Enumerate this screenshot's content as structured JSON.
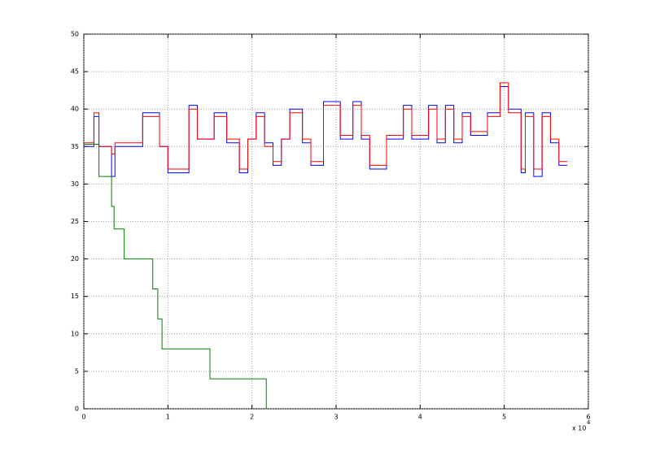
{
  "chart_data": {
    "type": "line",
    "xlim": [
      0,
      60000
    ],
    "ylim": [
      0,
      50
    ],
    "xticks": [
      0,
      {
        "value": 10000,
        "label": "1"
      },
      {
        "value": 20000,
        "label": "2"
      },
      {
        "value": 30000,
        "label": "3"
      },
      {
        "value": 40000,
        "label": "4"
      },
      {
        "value": 50000,
        "label": "5"
      },
      {
        "value": 60000,
        "label": "6"
      }
    ],
    "yticks": [
      0,
      5,
      10,
      15,
      20,
      25,
      30,
      35,
      40,
      45,
      50
    ],
    "x_scale_label": "x 10",
    "x_scale_exponent": "4",
    "grid": true,
    "series": [
      {
        "color": "#0000ff",
        "x": [
          0,
          1200,
          1200,
          1800,
          1800,
          3300,
          3300,
          3700,
          3700,
          7000,
          7000,
          9000,
          9000,
          10000,
          10000,
          12500,
          12500,
          13500,
          13500,
          15500,
          15500,
          17000,
          17000,
          18500,
          18500,
          19500,
          19500,
          20500,
          20500,
          21500,
          21500,
          22500,
          22500,
          23500,
          23500,
          24500,
          24500,
          26000,
          26000,
          27000,
          27000,
          28500,
          28500,
          30500,
          30500,
          32000,
          32000,
          33000,
          33000,
          34000,
          34000,
          36000,
          36000,
          38000,
          38000,
          39000,
          39000,
          41000,
          41000,
          42000,
          42000,
          43000,
          43000,
          44000,
          44000,
          45000,
          45000,
          46000,
          46000,
          48000,
          48000,
          49500,
          49500,
          50500,
          50500,
          52000,
          52000,
          52500,
          52500,
          53500,
          53500,
          54500,
          54500,
          55500,
          55500,
          56500,
          56500,
          57500
        ],
        "values": [
          35,
          35,
          39,
          39,
          35,
          35,
          31,
          31,
          35,
          35,
          39.5,
          39.5,
          35,
          35,
          31.5,
          31.5,
          40.5,
          40.5,
          36,
          36,
          39.5,
          39.5,
          35.5,
          35.5,
          31.5,
          31.5,
          36,
          36,
          39.5,
          39.5,
          35.5,
          35.5,
          32.5,
          32.5,
          36,
          36,
          40,
          40,
          35.5,
          35.5,
          32.5,
          32.5,
          41,
          41,
          36,
          36,
          41,
          41,
          36,
          36,
          32,
          32,
          36,
          36,
          40.5,
          40.5,
          36,
          36,
          40.5,
          40.5,
          35.5,
          35.5,
          40.5,
          40.5,
          35.5,
          35.5,
          39.5,
          39.5,
          36.5,
          36.5,
          39.5,
          39.5,
          43,
          43,
          40,
          40,
          31.5,
          31.5,
          39.5,
          39.5,
          31,
          31,
          39.5,
          39.5,
          35.5,
          35.5,
          32.5,
          32.5
        ]
      },
      {
        "color": "#ff0000",
        "x": [
          0,
          1200,
          1200,
          1800,
          1800,
          3300,
          3300,
          3700,
          3700,
          7000,
          7000,
          9000,
          9000,
          10000,
          10000,
          12500,
          12500,
          13500,
          13500,
          15500,
          15500,
          17000,
          17000,
          18500,
          18500,
          19500,
          19500,
          20500,
          20500,
          21500,
          21500,
          22500,
          22500,
          23500,
          23500,
          24500,
          24500,
          26000,
          26000,
          27000,
          27000,
          28500,
          28500,
          30500,
          30500,
          32000,
          32000,
          33000,
          33000,
          34000,
          34000,
          36000,
          36000,
          38000,
          38000,
          39000,
          39000,
          41000,
          41000,
          42000,
          42000,
          43000,
          43000,
          44000,
          44000,
          45000,
          45000,
          46000,
          46000,
          48000,
          48000,
          49500,
          49500,
          50500,
          50500,
          52000,
          52000,
          52500,
          52500,
          53500,
          53500,
          54500,
          54500,
          55500,
          55500,
          56500,
          56500,
          57500
        ],
        "values": [
          35.5,
          35.5,
          39.5,
          39.5,
          35,
          35,
          34,
          34,
          35.5,
          35.5,
          39,
          39,
          35,
          35,
          32,
          32,
          40,
          40,
          36,
          36,
          39,
          39,
          36,
          36,
          32,
          32,
          36,
          36,
          39,
          39,
          35,
          35,
          33,
          33,
          36,
          36,
          39.5,
          39.5,
          36,
          36,
          33,
          33,
          40.5,
          40.5,
          36.5,
          36.5,
          40.5,
          40.5,
          36.5,
          36.5,
          32.5,
          32.5,
          36.5,
          36.5,
          40,
          40,
          36.5,
          36.5,
          40,
          40,
          36,
          36,
          40,
          40,
          36,
          36,
          39,
          39,
          37,
          37,
          39,
          39,
          43.5,
          43.5,
          39.5,
          39.5,
          32,
          32,
          39,
          39,
          32,
          32,
          39,
          39,
          36,
          36,
          33,
          33
        ]
      },
      {
        "color": "#008000",
        "x": [
          0,
          1800,
          1800,
          3300,
          3300,
          3600,
          3600,
          4800,
          4800,
          8200,
          8200,
          8800,
          8800,
          9300,
          9300,
          15000,
          15000,
          21700,
          21700,
          21800
        ],
        "values": [
          35.3,
          35.3,
          31,
          31,
          27,
          27,
          24,
          24,
          20,
          20,
          16,
          16,
          12,
          12,
          8,
          8,
          4,
          4,
          0,
          0
        ]
      }
    ]
  }
}
